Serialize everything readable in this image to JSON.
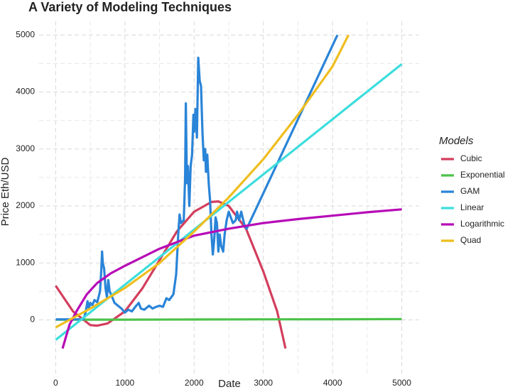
{
  "chart_data": {
    "type": "line",
    "title": "A Variety of Modeling Techniques",
    "x_label": "Date",
    "y_label": "Price Eth/USD",
    "legend_title": "Models",
    "legend": "right",
    "xlim": [
      -240,
      5250
    ],
    "ylim": [
      -990,
      5240
    ],
    "xticks": [
      0,
      1000,
      2000,
      3000,
      4000,
      5000
    ],
    "yticks": [
      0,
      1000,
      2000,
      3000,
      4000,
      5000
    ],
    "grid": true,
    "minor_grid": true,
    "series": [
      {
        "name": "Cubic",
        "color": "#d33e5d",
        "x": [
          0,
          250,
          500,
          600,
          750,
          1000,
          1250,
          1500,
          1750,
          2000,
          2250,
          2350,
          2500,
          2750,
          3000,
          3200,
          3320
        ],
        "values": [
          600,
          150,
          -90,
          -100,
          -60,
          150,
          550,
          1050,
          1550,
          1900,
          2070,
          2080,
          2000,
          1600,
          850,
          150,
          -500
        ]
      },
      {
        "name": "Exponential",
        "color": "#4dc24a",
        "x": [
          0,
          1000,
          2000,
          3000,
          4000,
          5000
        ],
        "values": [
          5,
          6,
          8,
          10,
          12,
          15
        ]
      },
      {
        "name": "GAM",
        "color": "#2a84d8",
        "x": [
          0,
          400,
          430,
          460,
          480,
          500,
          530,
          560,
          600,
          640,
          660,
          670,
          680,
          700,
          720,
          740,
          760,
          780,
          800,
          850,
          900,
          950,
          1000,
          1050,
          1100,
          1150,
          1200,
          1230,
          1280,
          1350,
          1400,
          1450,
          1500,
          1550,
          1600,
          1640,
          1700,
          1740,
          1770,
          1790,
          1810,
          1850,
          1870,
          1880,
          1895,
          1910,
          1930,
          1950,
          1970,
          1990,
          2000,
          2020,
          2040,
          2060,
          2080,
          2100,
          2120,
          2140,
          2160,
          2170,
          2190,
          2210,
          2230,
          2250,
          2270,
          2290,
          2310,
          2330,
          2350,
          2370,
          2390,
          2420,
          2440,
          2470,
          2500,
          2530,
          2560,
          2600,
          2620,
          2650,
          2680,
          2700,
          2730,
          2760,
          4070
        ],
        "values": [
          10,
          10,
          120,
          330,
          200,
          300,
          260,
          350,
          310,
          500,
          900,
          1200,
          1000,
          900,
          550,
          400,
          700,
          500,
          450,
          300,
          250,
          200,
          130,
          180,
          150,
          230,
          300,
          200,
          180,
          250,
          200,
          230,
          250,
          230,
          380,
          350,
          450,
          800,
          1500,
          1850,
          1700,
          1750,
          2500,
          3800,
          2400,
          2700,
          2000,
          2700,
          2900,
          3600,
          3300,
          3700,
          3200,
          4600,
          4200,
          4100,
          3300,
          2800,
          3000,
          2600,
          2900,
          2400,
          2100,
          1500,
          1150,
          1400,
          1800,
          1700,
          1200,
          1500,
          1300,
          1200,
          1500,
          1750,
          1900,
          1800,
          1700,
          1750,
          1900,
          1750,
          1900,
          1800,
          1650,
          1600,
          5000
        ]
      },
      {
        "name": "Linear",
        "color": "#3ddddd",
        "x": [
          0,
          5000
        ],
        "values": [
          -350,
          4490
        ]
      },
      {
        "name": "Logarithmic",
        "color": "#b70ab7",
        "x": [
          100,
          200,
          300,
          450,
          600,
          800,
          1000,
          1500,
          2000,
          2500,
          3000,
          3500,
          4000,
          4500,
          5000
        ],
        "values": [
          -500,
          -80,
          150,
          450,
          650,
          820,
          950,
          1250,
          1480,
          1600,
          1700,
          1770,
          1830,
          1890,
          1940
        ]
      },
      {
        "name": "Quad",
        "color": "#efbd1e",
        "x": [
          0,
          500,
          1000,
          1500,
          2000,
          2500,
          3000,
          3500,
          4000,
          4230
        ],
        "values": [
          -130,
          200,
          560,
          1000,
          1550,
          2150,
          2820,
          3600,
          4450,
          5000
        ]
      }
    ]
  }
}
